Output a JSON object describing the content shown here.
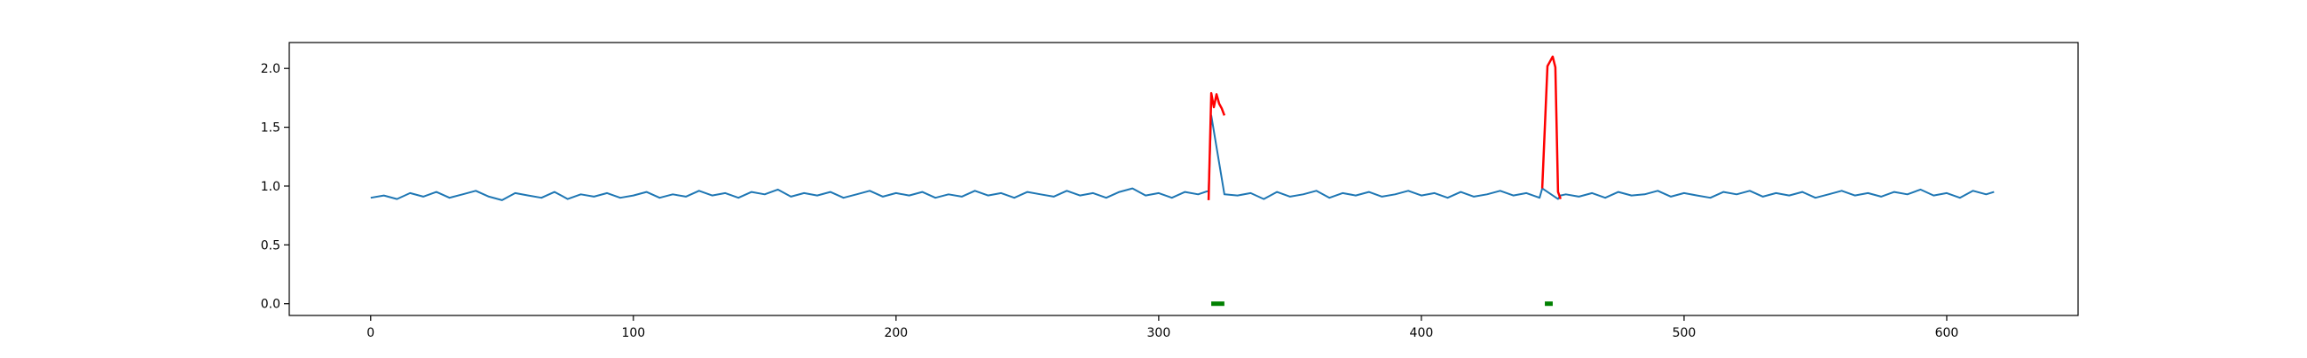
{
  "chart_data": {
    "type": "line",
    "title": "",
    "xlabel": "",
    "ylabel": "",
    "xlim": [
      -31,
      650
    ],
    "ylim": [
      -0.1,
      2.22
    ],
    "xticks": [
      0,
      100,
      200,
      300,
      400,
      500,
      600
    ],
    "yticks": [
      0.0,
      0.5,
      1.0,
      1.5,
      2.0
    ],
    "xtick_labels": [
      "0",
      "100",
      "200",
      "300",
      "400",
      "500",
      "600"
    ],
    "ytick_labels": [
      "0.0",
      "0.5",
      "1.0",
      "1.5",
      "2.0"
    ],
    "grid": false,
    "legend": "none",
    "series": [
      {
        "color": "#1f77b4",
        "x": [
          0,
          5,
          10,
          15,
          20,
          25,
          30,
          35,
          40,
          45,
          50,
          55,
          60,
          65,
          70,
          75,
          80,
          85,
          90,
          95,
          100,
          105,
          110,
          115,
          120,
          125,
          130,
          135,
          140,
          145,
          150,
          155,
          160,
          165,
          170,
          175,
          180,
          185,
          190,
          195,
          200,
          205,
          210,
          215,
          220,
          225,
          230,
          235,
          240,
          245,
          250,
          255,
          260,
          265,
          270,
          275,
          280,
          285,
          290,
          295,
          300,
          305,
          310,
          315,
          319,
          320,
          325,
          330,
          335,
          340,
          345,
          350,
          355,
          360,
          365,
          370,
          375,
          380,
          385,
          390,
          395,
          400,
          405,
          410,
          415,
          420,
          425,
          430,
          435,
          440,
          445,
          446,
          452,
          453,
          455,
          460,
          465,
          470,
          475,
          480,
          485,
          490,
          495,
          500,
          505,
          510,
          515,
          520,
          525,
          530,
          535,
          540,
          545,
          550,
          555,
          560,
          565,
          570,
          575,
          580,
          585,
          590,
          595,
          600,
          605,
          610,
          615,
          618
        ],
        "y": [
          0.9,
          0.92,
          0.89,
          0.94,
          0.91,
          0.95,
          0.9,
          0.93,
          0.96,
          0.91,
          0.88,
          0.94,
          0.92,
          0.9,
          0.95,
          0.89,
          0.93,
          0.91,
          0.94,
          0.9,
          0.92,
          0.95,
          0.9,
          0.93,
          0.91,
          0.96,
          0.92,
          0.94,
          0.9,
          0.95,
          0.93,
          0.97,
          0.91,
          0.94,
          0.92,
          0.95,
          0.9,
          0.93,
          0.96,
          0.91,
          0.94,
          0.92,
          0.95,
          0.9,
          0.93,
          0.91,
          0.96,
          0.92,
          0.94,
          0.9,
          0.95,
          0.93,
          0.91,
          0.96,
          0.92,
          0.94,
          0.9,
          0.95,
          0.98,
          0.92,
          0.94,
          0.9,
          0.95,
          0.93,
          0.96,
          1.6,
          0.93,
          0.92,
          0.94,
          0.89,
          0.95,
          0.91,
          0.93,
          0.96,
          0.9,
          0.94,
          0.92,
          0.95,
          0.91,
          0.93,
          0.96,
          0.92,
          0.94,
          0.9,
          0.95,
          0.91,
          0.93,
          0.96,
          0.92,
          0.94,
          0.9,
          0.98,
          0.89,
          0.92,
          0.93,
          0.91,
          0.94,
          0.9,
          0.95,
          0.92,
          0.93,
          0.96,
          0.91,
          0.94,
          0.92,
          0.9,
          0.95,
          0.93,
          0.96,
          0.91,
          0.94,
          0.92,
          0.95,
          0.9,
          0.93,
          0.96,
          0.92,
          0.94,
          0.91,
          0.95,
          0.93,
          0.97,
          0.92,
          0.94,
          0.9,
          0.96,
          0.93,
          0.95
        ]
      },
      {
        "color": "#ff0000",
        "x": [
          319,
          320,
          321,
          322,
          323,
          324,
          325
        ],
        "y": [
          0.88,
          1.79,
          1.67,
          1.78,
          1.7,
          1.66,
          1.6
        ]
      },
      {
        "color": "#ff0000",
        "x": [
          446,
          448,
          449,
          450,
          451,
          452,
          453
        ],
        "y": [
          0.98,
          2.02,
          2.06,
          2.1,
          2.01,
          0.95,
          0.89
        ]
      }
    ],
    "markers": [
      {
        "color": "#008000",
        "x_start": 320,
        "x_end": 325,
        "y": 0.0
      },
      {
        "color": "#008000",
        "x_start": 447,
        "x_end": 450,
        "y": 0.0
      }
    ]
  }
}
